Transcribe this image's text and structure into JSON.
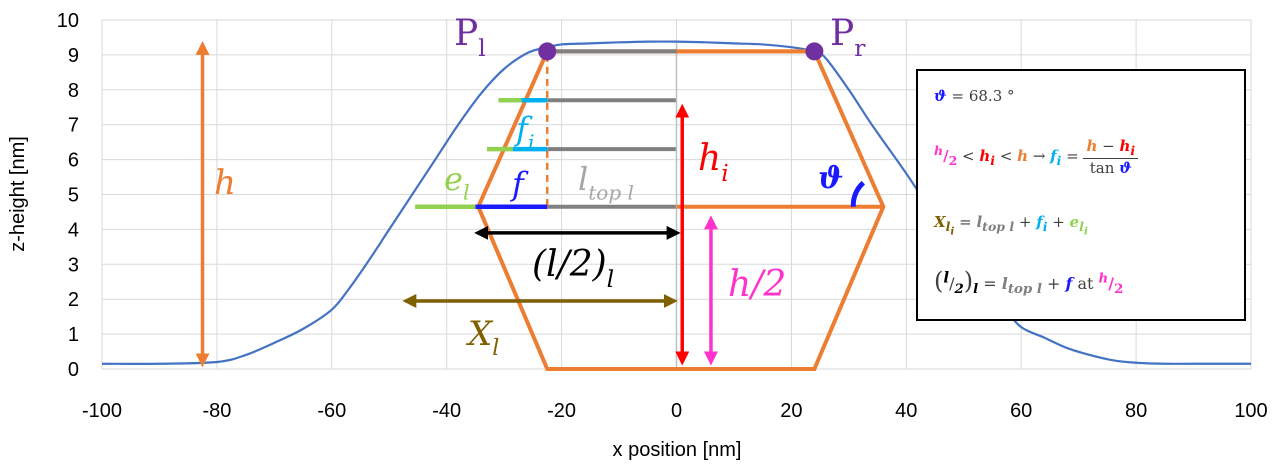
{
  "chart_data": {
    "type": "line",
    "title": "",
    "xlabel": "x position [nm]",
    "ylabel": "z-height [nm]",
    "xlim": [
      -100,
      100
    ],
    "ylim": [
      0,
      10
    ],
    "x_ticks": [
      "-100",
      "-80",
      "-60",
      "-40",
      "-20",
      "0",
      "20",
      "40",
      "60",
      "80",
      "100"
    ],
    "y_ticks": [
      "0",
      "1",
      "2",
      "3",
      "4",
      "5",
      "6",
      "7",
      "8",
      "9",
      "10"
    ],
    "grid": true,
    "series": [
      {
        "color": "#4472c4",
        "x": [
          -100,
          -90,
          -80,
          -75,
          -70,
          -65,
          -60,
          -57,
          -54,
          -50,
          -46,
          -42,
          -38,
          -34,
          -30,
          -26,
          -23,
          -20,
          -15,
          -10,
          -5,
          0,
          5,
          10,
          15,
          20,
          24,
          26,
          30,
          34,
          40,
          44,
          48,
          54,
          57,
          60,
          64,
          68,
          72,
          76,
          80,
          85,
          90,
          100
        ],
        "y": [
          0.15,
          0.15,
          0.2,
          0.4,
          0.75,
          1.15,
          1.7,
          2.3,
          3.0,
          4.0,
          5.0,
          6.0,
          7.0,
          7.9,
          8.6,
          9.05,
          9.2,
          9.3,
          9.33,
          9.36,
          9.38,
          9.38,
          9.36,
          9.33,
          9.3,
          9.22,
          9.1,
          8.9,
          8.0,
          7.0,
          5.6,
          4.6,
          3.6,
          2.4,
          1.75,
          1.2,
          0.9,
          0.6,
          0.4,
          0.25,
          0.18,
          0.15,
          0.15,
          0.15
        ]
      }
    ],
    "trapezoid": {
      "color": "#ed7d31",
      "points": [
        [
          -22.5,
          0
        ],
        [
          24,
          0
        ],
        [
          36,
          4.65
        ],
        [
          24,
          9.1
        ],
        [
          -22.5,
          9.1
        ],
        [
          -34.5,
          4.65
        ]
      ],
      "mid_line": [
        [
          -34.5,
          4.65
        ],
        [
          36,
          4.65
        ]
      ],
      "center_line": [
        [
          0,
          0
        ],
        [
          0,
          9.35
        ]
      ]
    },
    "annotations": {
      "P_left": "P",
      "P_left_sub": "l",
      "P_right": "P",
      "P_right_sub": "r",
      "h": "h",
      "h_i": "h",
      "h_i_sub": "i",
      "h_half": "h/2",
      "f": "f",
      "f_i": "f",
      "f_i_sub": "i",
      "e_l": "e",
      "e_l_sub": "l",
      "l_top": "l",
      "l_top_sub": "top l",
      "l_half": "(l/2)",
      "l_half_sub": "l",
      "X_l": "X",
      "X_l_sub": "l",
      "theta": "ϑ"
    }
  },
  "equations": {
    "theta_sym": "ϑ",
    "theta_val": " = 68.3 °",
    "h": "h",
    "h_i": "h",
    "i": "i",
    "lt": " < ",
    "arrow": " → ",
    "f": "f",
    "eq": " = ",
    "minus": " − ",
    "tan": "tan ",
    "half": "2",
    "X": "X",
    "l": "l",
    "l_top": "l",
    "top_l": "top l",
    "plus": " + ",
    "e": "e",
    "at": " at ",
    "half_den": "2"
  }
}
